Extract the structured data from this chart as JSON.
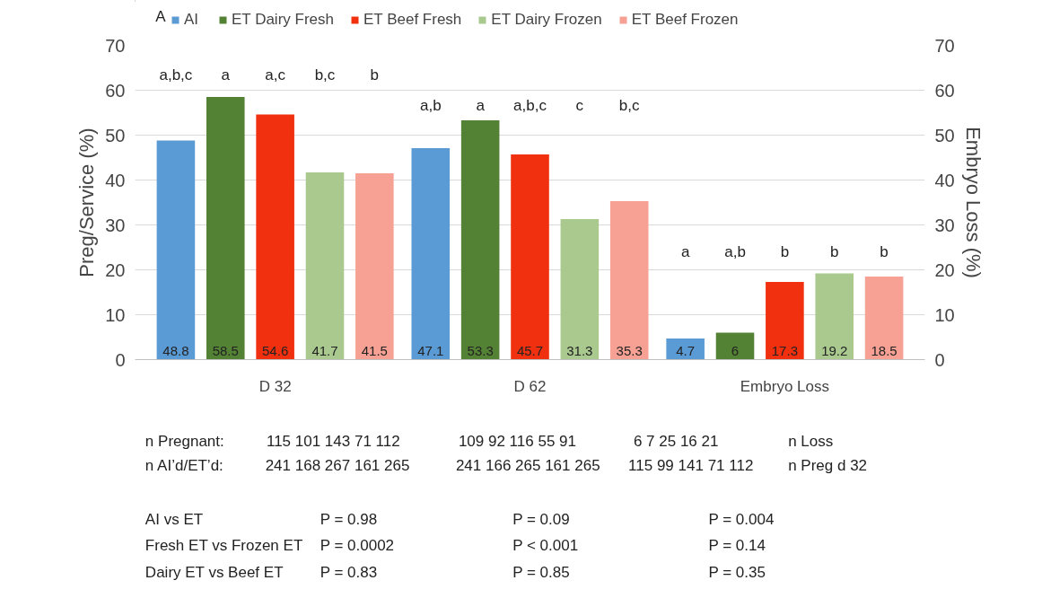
{
  "chart_data": {
    "type": "bar",
    "categories": [
      "D 32",
      "D 62",
      "Embryo Loss"
    ],
    "ylabel": "Preg/Service (%)",
    "y2label": "Embryo Loss (%)",
    "ylim": [
      0,
      70
    ],
    "yticks": [
      0,
      10,
      20,
      30,
      40,
      50,
      60,
      70
    ],
    "y2lim": [
      0,
      70
    ],
    "y2ticks": [
      0,
      10,
      20,
      30,
      40,
      50,
      60,
      70
    ],
    "grid": "y",
    "legend": "top left",
    "data_labels": true,
    "series": [
      {
        "name": "AI",
        "color": "#5b9bd5",
        "values": [
          48.8,
          47.1,
          4.7
        ]
      },
      {
        "name": "ET Dairy Fresh",
        "color": "#548235",
        "values": [
          58.5,
          53.3,
          6
        ]
      },
      {
        "name": "ET Beef Fresh",
        "color": "#f0300e",
        "values": [
          54.6,
          45.7,
          17.3
        ]
      },
      {
        "name": "ET Dairy Frozen",
        "color": "#a9c98f",
        "values": [
          41.7,
          31.3,
          19.2
        ]
      },
      {
        "name": "ET Beef Frozen",
        "color": "#f6a194",
        "values": [
          41.5,
          35.3,
          18.5
        ]
      }
    ],
    "annotations": [
      "A",
      "n Pregnant:",
      "115  101  143   71   112",
      "109   92   116   55    91",
      "6      7      25    16    21",
      "n Loss",
      "n AI’d/ET’d:",
      "241  168  267  161  265",
      "241  166  265  161  265",
      "115   99    141   71   112",
      "n Preg d 32",
      "AI vs ET",
      "P = 0.98",
      "P = 0.09",
      "P = 0.004",
      "Fresh ET vs Frozen ET",
      "P = 0.0002",
      "P < 0.001",
      "P = 0.14",
      "Dairy ET vs Beef ET",
      "P = 0.83",
      "P = 0.85",
      "P = 0.35",
      "a,b,c",
      "a",
      "a,c",
      "b,c",
      "b",
      "a,b",
      "a",
      "a,b,c",
      "c",
      "b,c",
      "a",
      "a,b",
      "b",
      "b",
      "b"
    ]
  }
}
